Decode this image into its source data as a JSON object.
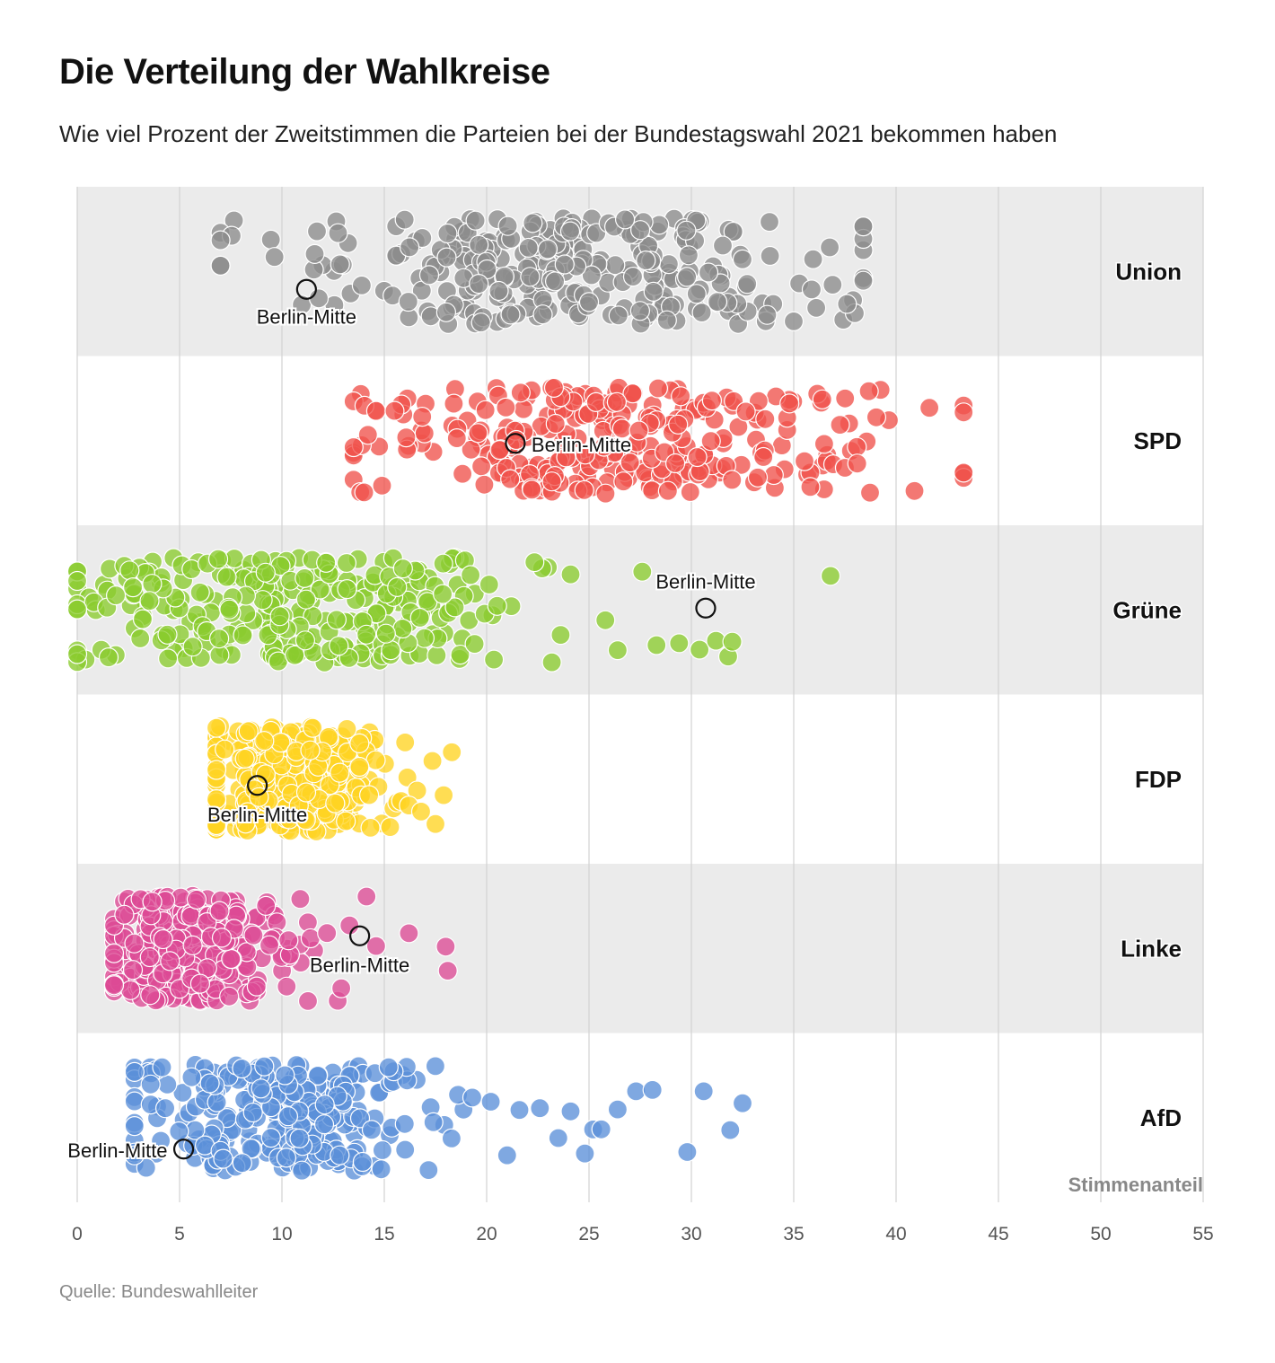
{
  "header": {
    "title": "Die Verteilung der Wahlkreise",
    "subtitle": "Wie viel Prozent der Zweitstimmen die Parteien bei der Bundestagswahl 2021 bekommen haben"
  },
  "footer": {
    "source": "Quelle: Bundeswahlleiter"
  },
  "chart_data": {
    "type": "scatter",
    "title": "Die Verteilung der Wahlkreise",
    "xlabel": "Stimmenanteil",
    "ylabel": "",
    "xlim": [
      0,
      55
    ],
    "xticks": [
      "0",
      "5",
      "10",
      "15",
      "20",
      "25",
      "30",
      "35",
      "40",
      "45",
      "50",
      "55"
    ],
    "grid": true,
    "highlight_label": "Berlin-Mitte",
    "series": [
      {
        "name": "Union",
        "color": "#8c8c8c",
        "n": 299,
        "min": 7.0,
        "max": 38.4,
        "center": 24.0,
        "spread": 6.5,
        "highlight": 11.2,
        "outliers": [
          7.0,
          11.6,
          11.8,
          13.9,
          32.5,
          33.7,
          35.0,
          36.1,
          36.9,
          37.6,
          38.4
        ]
      },
      {
        "name": "SPD",
        "color": "#f0524b",
        "n": 299,
        "min": 13.5,
        "max": 43.3,
        "center": 26.5,
        "spread": 6.5,
        "highlight": 21.4,
        "outliers": [
          13.5,
          14.2,
          14.6,
          15.5,
          37.5,
          38.1,
          43.3
        ]
      },
      {
        "name": "Grüne",
        "color": "#8acc2e",
        "n": 299,
        "min": 0.0,
        "max": 36.8,
        "center": 11.0,
        "spread": 5.5,
        "highlight": 30.7,
        "outliers": [
          0.0,
          0.0,
          0.0,
          0.0,
          25.8,
          26.4,
          27.6,
          28.3,
          29.4,
          30.4,
          31.2,
          31.8,
          32.0,
          36.8
        ]
      },
      {
        "name": "FDP",
        "color": "#ffd323",
        "n": 299,
        "min": 6.8,
        "max": 18.3,
        "center": 11.0,
        "spread": 2.4,
        "highlight": 8.8,
        "outliers": [
          6.8,
          16.2,
          16.8,
          17.5,
          17.9,
          18.3
        ]
      },
      {
        "name": "Linke",
        "color": "#dc4a95",
        "n": 299,
        "min": 1.8,
        "max": 18.1,
        "center": 5.5,
        "spread": 2.4,
        "highlight": 13.8,
        "outliers": [
          11.4,
          12.2,
          12.9,
          13.3,
          14.6,
          16.2,
          18.0,
          18.1
        ]
      },
      {
        "name": "AfD",
        "color": "#5b8fd9",
        "n": 299,
        "min": 2.8,
        "max": 32.5,
        "center": 9.5,
        "spread": 3.6,
        "highlight": 5.2,
        "outliers": [
          16.0,
          17.4,
          18.6,
          19.3,
          20.2,
          21.0,
          21.6,
          22.6,
          23.5,
          24.1,
          24.8,
          25.2,
          25.6,
          26.4,
          27.3,
          28.1,
          29.8,
          30.6,
          31.9,
          32.5
        ]
      }
    ]
  }
}
